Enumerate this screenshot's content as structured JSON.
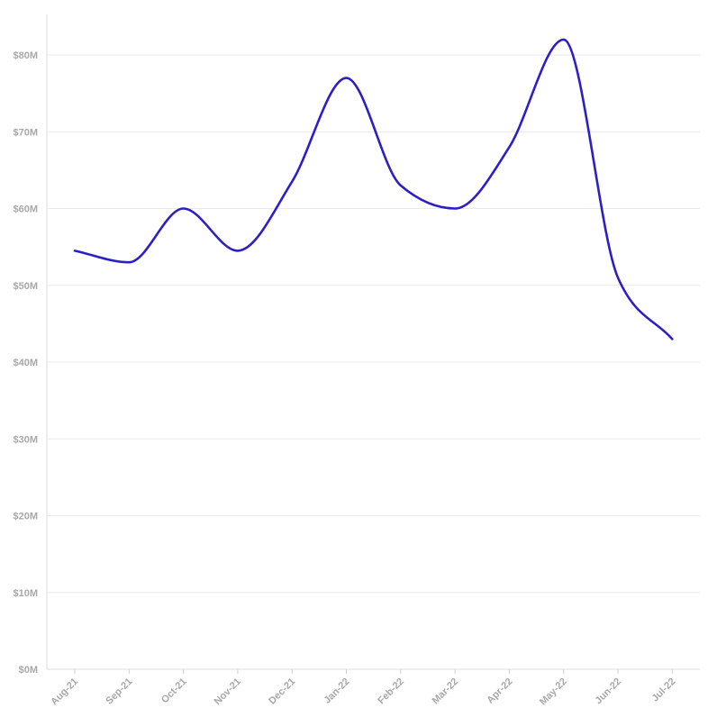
{
  "chart_data": {
    "type": "line",
    "title": "",
    "xlabel": "",
    "ylabel": "",
    "categories": [
      "Aug-21",
      "Sep-21",
      "Oct-21",
      "Nov-21",
      "Dec-21",
      "Jan-22",
      "Feb-22",
      "Mar-22",
      "Apr-22",
      "May-22",
      "Jun-22",
      "Jul-22"
    ],
    "series": [
      {
        "color": "#2b1fc6",
        "values": [
          54.5,
          53,
          60,
          54.5,
          63.5,
          77,
          63,
          60,
          68,
          82,
          51,
          43
        ]
      }
    ],
    "ylim": [
      0,
      80
    ],
    "y_ticks": [
      0,
      10,
      20,
      30,
      40,
      50,
      60,
      70,
      80
    ],
    "y_tick_labels": [
      "$0M",
      "$10M",
      "$20M",
      "$30M",
      "$40M",
      "$50M",
      "$60M",
      "$70M",
      "$80M"
    ],
    "grid": true,
    "legend": "none",
    "colors": {
      "grid": "#e9e9e9",
      "axis": "#dddddd",
      "tick_text": "#a8a8a8"
    }
  }
}
